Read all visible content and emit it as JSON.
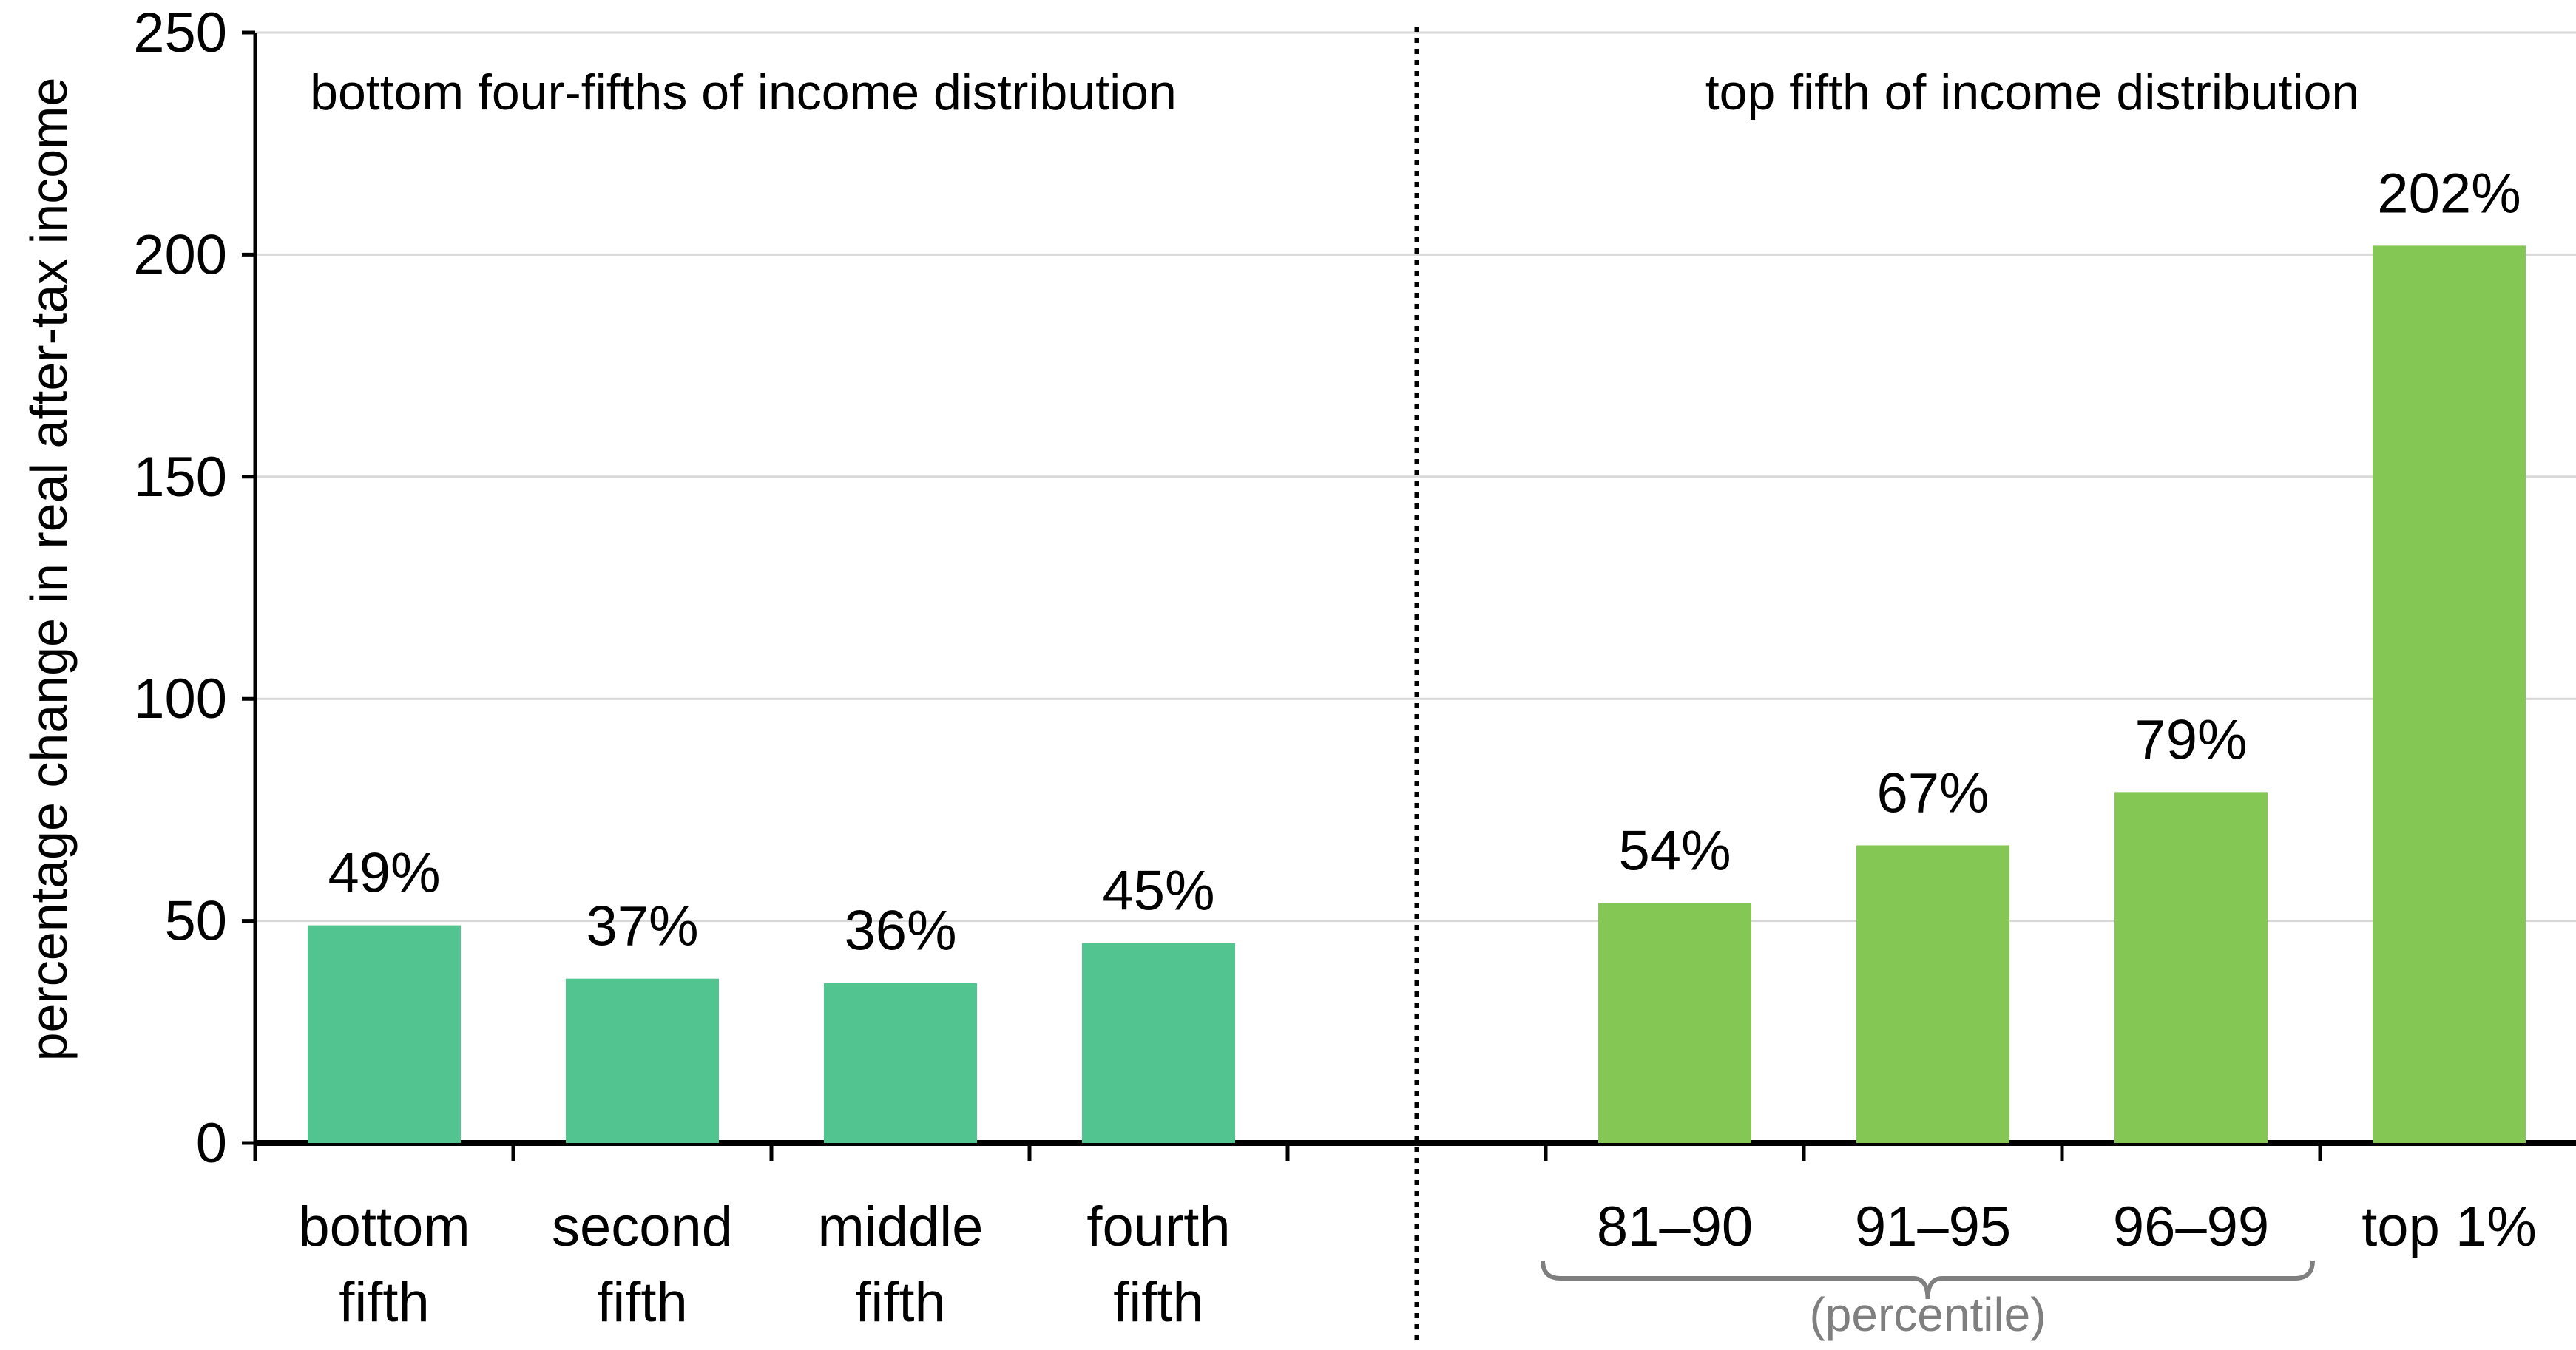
{
  "chart_data": {
    "type": "bar",
    "ylabel": "percentage change in real after-tax income",
    "ylim": [
      0,
      250
    ],
    "yticks": [
      0,
      50,
      100,
      150,
      200,
      250
    ],
    "grid": true,
    "categories": [
      {
        "lines": [
          "bottom",
          "fifth"
        ],
        "value": 49,
        "label": "49%",
        "group": "bottom"
      },
      {
        "lines": [
          "second",
          "fifth"
        ],
        "value": 37,
        "label": "37%",
        "group": "bottom"
      },
      {
        "lines": [
          "middle",
          "fifth"
        ],
        "value": 36,
        "label": "36%",
        "group": "bottom"
      },
      {
        "lines": [
          "fourth",
          "fifth"
        ],
        "value": 45,
        "label": "45%",
        "group": "bottom"
      },
      {
        "lines": [
          "81–90"
        ],
        "value": 54,
        "label": "54%",
        "group": "top"
      },
      {
        "lines": [
          "91–95"
        ],
        "value": 67,
        "label": "67%",
        "group": "top"
      },
      {
        "lines": [
          "96–99"
        ],
        "value": 79,
        "label": "79%",
        "group": "top"
      },
      {
        "lines": [
          "top 1%"
        ],
        "value": 202,
        "label": "202%",
        "group": "top"
      }
    ],
    "annotations": {
      "bottom_section": "bottom four-fifths of income distribution",
      "top_section": "top fifth of income distribution",
      "bracket_label": "(percentile)"
    },
    "colors": {
      "bottom": "#52C48F",
      "top": "#85C755",
      "grid": "#D9D9D9",
      "axis": "#000000",
      "bracket": "#7F7F7F"
    }
  }
}
